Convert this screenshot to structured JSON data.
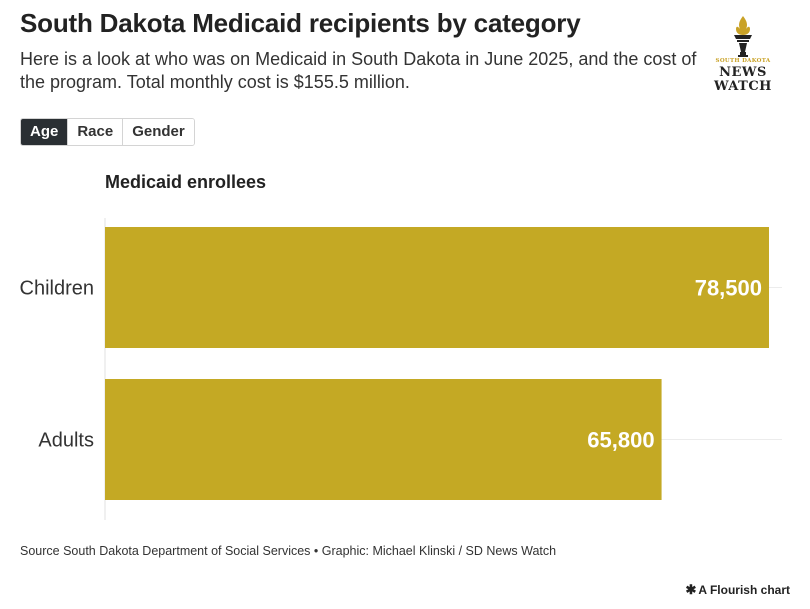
{
  "header": {
    "title": "South Dakota Medicaid recipients by category",
    "subtitle": "Here is a look at who was on Medicaid in South Dakota in June 2025, and the cost of the program. Total monthly cost is $155.5 million."
  },
  "logo": {
    "top_text": "SOUTH DAKOTA",
    "line1": "NEWS",
    "line2": "WATCH",
    "gold": "#c9a227"
  },
  "tabs": [
    {
      "label": "Age",
      "active": true
    },
    {
      "label": "Race",
      "active": false
    },
    {
      "label": "Gender",
      "active": false
    }
  ],
  "chart_data": {
    "type": "bar",
    "orientation": "horizontal",
    "title": "Medicaid enrollees",
    "categories": [
      "Children",
      "Adults"
    ],
    "values": [
      78500,
      65800
    ],
    "value_labels": [
      "78,500",
      "65,800"
    ],
    "xlim": [
      0,
      78500
    ],
    "bar_color": "#c4a924",
    "label_color": "#ffffff",
    "grid": true
  },
  "footer": {
    "source": "Source South Dakota Department of Social Services • Graphic: Michael Klinski / SD News Watch",
    "flourish_credit": "A Flourish chart"
  }
}
